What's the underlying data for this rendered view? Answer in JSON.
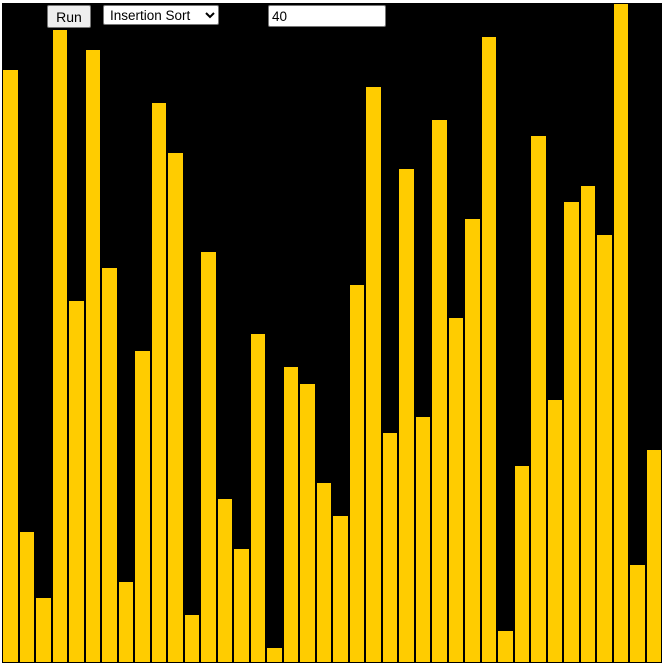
{
  "controls": {
    "run_label": "Run",
    "algorithm_options": [
      "Insertion Sort"
    ],
    "algorithm_selected": "Insertion Sort",
    "array_size_value": "40"
  },
  "chart_data": {
    "type": "bar",
    "values": [
      0.9,
      0.2,
      0.1,
      0.96,
      0.55,
      0.93,
      0.6,
      0.125,
      0.475,
      0.85,
      0.775,
      0.075,
      0.625,
      0.25,
      0.175,
      0.5,
      0.025,
      0.45,
      0.425,
      0.275,
      0.225,
      0.575,
      0.875,
      0.35,
      0.75,
      0.375,
      0.825,
      0.525,
      0.675,
      0.95,
      0.05,
      0.3,
      0.8,
      0.4,
      0.7,
      0.725,
      0.65,
      1.0,
      0.15,
      0.325
    ],
    "ylim": [
      0,
      1
    ],
    "bar_color": "#ffcc00",
    "background_color": "#000000"
  }
}
